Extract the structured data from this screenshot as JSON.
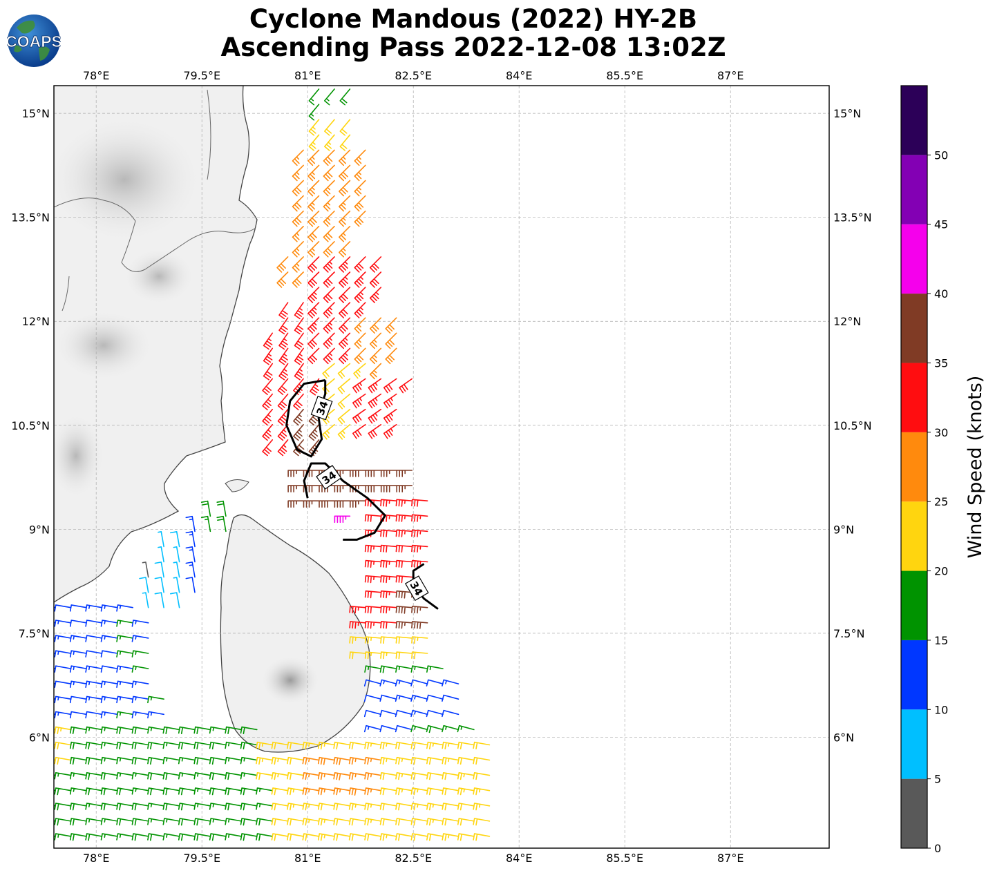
{
  "title": {
    "line1": "Cyclone Mandous (2022) HY-2B",
    "line2": "Ascending Pass 2022-12-08 13:02Z"
  },
  "logo": {
    "text": "COAPS",
    "icon": "globe-icon"
  },
  "map": {
    "lon_range": [
      77.4,
      88.4
    ],
    "lat_range": [
      4.4,
      15.4
    ],
    "lon_ticks": [
      {
        "value": 78,
        "label": "78°E"
      },
      {
        "value": 79.5,
        "label": "79.5°E"
      },
      {
        "value": 81,
        "label": "81°E"
      },
      {
        "value": 82.5,
        "label": "82.5°E"
      },
      {
        "value": 84,
        "label": "84°E"
      },
      {
        "value": 85.5,
        "label": "85.5°E"
      },
      {
        "value": 87,
        "label": "87°E"
      }
    ],
    "lat_ticks": [
      {
        "value": 15,
        "label": "15°N"
      },
      {
        "value": 13.5,
        "label": "13.5°N"
      },
      {
        "value": 12,
        "label": "12°N"
      },
      {
        "value": 10.5,
        "label": "10.5°N"
      },
      {
        "value": 9,
        "label": "9°N"
      },
      {
        "value": 7.5,
        "label": "7.5°N"
      },
      {
        "value": 6,
        "label": "6°N"
      }
    ],
    "contour_label": "34",
    "contour_labels": [
      {
        "lon": 81.2,
        "lat": 10.75,
        "rot": -70
      },
      {
        "lon": 81.3,
        "lat": 9.75,
        "rot": -35
      },
      {
        "lon": 82.55,
        "lat": 8.15,
        "rot": 60
      }
    ],
    "contours": [
      [
        [
          81.25,
          11.15
        ],
        [
          80.95,
          11.1
        ],
        [
          80.75,
          10.85
        ],
        [
          80.7,
          10.5
        ],
        [
          80.85,
          10.15
        ],
        [
          81.05,
          10.05
        ],
        [
          81.2,
          10.3
        ],
        [
          81.15,
          10.65
        ],
        [
          81.25,
          10.95
        ],
        [
          81.25,
          11.15
        ]
      ],
      [
        [
          81.0,
          9.45
        ],
        [
          80.95,
          9.7
        ],
        [
          81.05,
          9.95
        ],
        [
          81.25,
          9.95
        ],
        [
          81.5,
          9.7
        ],
        [
          81.85,
          9.45
        ],
        [
          82.1,
          9.2
        ],
        [
          81.95,
          8.95
        ],
        [
          81.7,
          8.85
        ],
        [
          81.5,
          8.85
        ]
      ],
      [
        [
          82.65,
          8.5
        ],
        [
          82.5,
          8.4
        ],
        [
          82.5,
          8.2
        ],
        [
          82.65,
          8.0
        ],
        [
          82.85,
          7.85
        ]
      ]
    ]
  },
  "wind_swath": {
    "speed_units": "knots",
    "north_segment": [
      [
        81.1,
        15.4
      ],
      [
        81.65,
        15.4
      ],
      [
        82.5,
        11.2
      ],
      [
        82.7,
        10.0
      ],
      [
        81.9,
        10.0
      ],
      [
        80.3,
        10.0
      ],
      [
        80.5,
        12.0
      ]
    ],
    "south_segment": [
      [
        80.8,
        10.1
      ],
      [
        82.6,
        10.1
      ],
      [
        83.2,
        8.0
      ],
      [
        83.8,
        5.0
      ],
      [
        83.9,
        4.4
      ],
      [
        77.4,
        4.4
      ],
      [
        77.4,
        8.0
      ],
      [
        78.6,
        8.0
      ],
      [
        79.0,
        9.0
      ],
      [
        79.6,
        9.3
      ],
      [
        80.3,
        9.4
      ],
      [
        80.6,
        9.2
      ]
    ],
    "regions": [
      {
        "poly": [
          [
            81.1,
            15.4
          ],
          [
            81.7,
            15.4
          ],
          [
            81.1,
            15.0
          ],
          [
            80.6,
            15.0
          ]
        ],
        "speed": 17,
        "dir": 40
      },
      {
        "poly": [
          [
            80.8,
            14.9
          ],
          [
            81.8,
            15.0
          ],
          [
            81.5,
            14.3
          ],
          [
            80.9,
            14.3
          ]
        ],
        "speed": 23,
        "dir": 40
      },
      {
        "poly": [
          [
            80.8,
            14.6
          ],
          [
            82.0,
            14.6
          ],
          [
            81.6,
            12.3
          ],
          [
            80.7,
            12.6
          ]
        ],
        "speed": 27,
        "dir": 45
      },
      {
        "poly": [
          [
            80.3,
            12.4
          ],
          [
            81.0,
            12.4
          ],
          [
            81.2,
            11.0
          ],
          [
            80.4,
            11.0
          ]
        ],
        "speed": 33,
        "dir": 35
      },
      {
        "poly": [
          [
            81.0,
            13.0
          ],
          [
            82.2,
            13.0
          ],
          [
            81.8,
            11.4
          ],
          [
            81.0,
            11.4
          ]
        ],
        "speed": 33,
        "dir": 45
      },
      {
        "poly": [
          [
            81.8,
            12.2
          ],
          [
            82.5,
            12.2
          ],
          [
            82.2,
            11.2
          ],
          [
            81.7,
            11.2
          ]
        ],
        "speed": 28,
        "dir": 45
      },
      {
        "poly": [
          [
            81.3,
            11.4
          ],
          [
            82.0,
            11.4
          ],
          [
            81.9,
            10.3
          ],
          [
            81.2,
            10.3
          ]
        ],
        "speed": 22,
        "dir": 50
      },
      {
        "poly": [
          [
            81.8,
            11.3
          ],
          [
            82.5,
            11.3
          ],
          [
            82.4,
            10.3
          ],
          [
            81.8,
            10.3
          ]
        ],
        "speed": 33,
        "dir": 55
      },
      {
        "poly": [
          [
            80.3,
            11.3
          ],
          [
            81.1,
            11.2
          ],
          [
            81.2,
            10.1
          ],
          [
            80.3,
            10.1
          ]
        ],
        "speed": 33,
        "dir": 40
      },
      {
        "poly": [
          [
            80.8,
            10.8
          ],
          [
            81.2,
            10.8
          ],
          [
            81.2,
            10.2
          ],
          [
            80.8,
            10.2
          ]
        ],
        "speed": 37,
        "dir": 40
      },
      {
        "poly": [
          [
            80.9,
            9.9
          ],
          [
            82.6,
            9.9
          ],
          [
            82.3,
            9.2
          ],
          [
            80.9,
            9.2
          ]
        ],
        "speed": 37,
        "dir": 90
      },
      {
        "poly": [
          [
            81.4,
            9.25
          ],
          [
            81.8,
            9.25
          ],
          [
            81.8,
            9.05
          ],
          [
            81.4,
            9.05
          ]
        ],
        "speed": 42,
        "dir": 90
      },
      {
        "poly": [
          [
            81.9,
            9.5
          ],
          [
            82.8,
            9.5
          ],
          [
            82.6,
            7.5
          ],
          [
            81.8,
            7.5
          ]
        ],
        "speed": 33,
        "dir": 95
      },
      {
        "poly": [
          [
            82.3,
            8.2
          ],
          [
            82.9,
            8.2
          ],
          [
            82.8,
            7.6
          ],
          [
            82.3,
            7.6
          ]
        ],
        "speed": 37,
        "dir": 95
      },
      {
        "poly": [
          [
            81.6,
            7.6
          ],
          [
            82.9,
            7.6
          ],
          [
            82.9,
            7.0
          ],
          [
            81.6,
            7.0
          ]
        ],
        "speed": 22,
        "dir": 95
      },
      {
        "poly": [
          [
            81.9,
            7.0
          ],
          [
            83.0,
            7.0
          ],
          [
            83.0,
            6.8
          ],
          [
            81.9,
            6.8
          ]
        ],
        "speed": 17,
        "dir": 100
      },
      {
        "poly": [
          [
            82.0,
            6.8
          ],
          [
            83.3,
            6.8
          ],
          [
            83.3,
            6.1
          ],
          [
            82.0,
            6.1
          ]
        ],
        "speed": 12,
        "dir": 105
      },
      {
        "poly": [
          [
            82.6,
            6.2
          ],
          [
            83.4,
            6.2
          ],
          [
            83.4,
            5.9
          ],
          [
            82.6,
            5.9
          ]
        ],
        "speed": 17,
        "dir": 105
      },
      {
        "poly": [
          [
            80.3,
            6.1
          ],
          [
            83.6,
            6.1
          ],
          [
            83.8,
            4.4
          ],
          [
            80.5,
            4.4
          ]
        ],
        "speed": 22,
        "dir": 100
      },
      {
        "poly": [
          [
            81.0,
            5.8
          ],
          [
            82.2,
            5.8
          ],
          [
            82.2,
            5.2
          ],
          [
            81.0,
            5.2
          ]
        ],
        "speed": 27,
        "dir": 100
      },
      {
        "poly": [
          [
            77.4,
            8.0
          ],
          [
            78.9,
            8.0
          ],
          [
            79.0,
            5.7
          ],
          [
            77.4,
            5.7
          ]
        ],
        "speed": 15,
        "dir": 100
      },
      {
        "poly": [
          [
            77.4,
            8.0
          ],
          [
            78.5,
            8.0
          ],
          [
            78.5,
            6.2
          ],
          [
            77.4,
            6.2
          ]
        ],
        "speed": 13,
        "dir": 100
      },
      {
        "poly": [
          [
            77.4,
            6.3
          ],
          [
            80.4,
            6.3
          ],
          [
            80.6,
            4.4
          ],
          [
            77.4,
            4.4
          ]
        ],
        "speed": 18,
        "dir": 100
      },
      {
        "poly": [
          [
            77.4,
            6.2
          ],
          [
            77.7,
            6.2
          ],
          [
            77.7,
            5.6
          ],
          [
            77.4,
            5.6
          ]
        ],
        "speed": 22,
        "dir": 100
      },
      {
        "poly": [
          [
            78.6,
            8.9
          ],
          [
            79.3,
            8.9
          ],
          [
            79.3,
            7.8
          ],
          [
            78.6,
            7.8
          ]
        ],
        "speed": 8,
        "dir": 170
      },
      {
        "poly": [
          [
            78.4,
            8.5
          ],
          [
            78.9,
            8.5
          ],
          [
            78.9,
            8.1
          ],
          [
            78.4,
            8.1
          ]
        ],
        "speed": 3,
        "dir": 170
      },
      {
        "poly": [
          [
            79.3,
            9.1
          ],
          [
            79.6,
            9.1
          ],
          [
            79.5,
            7.9
          ],
          [
            79.2,
            7.9
          ]
        ],
        "speed": 13,
        "dir": 170
      },
      {
        "poly": [
          [
            79.5,
            9.8
          ],
          [
            80.0,
            9.8
          ],
          [
            80.0,
            8.8
          ],
          [
            79.5,
            8.8
          ]
        ],
        "speed": 18,
        "dir": 170
      }
    ]
  },
  "colorbar": {
    "title": "Wind Speed (knots)",
    "min": 0,
    "max": 55,
    "bins": [
      {
        "from": 0,
        "to": 5,
        "color": "#595959"
      },
      {
        "from": 5,
        "to": 10,
        "color": "#00bfff"
      },
      {
        "from": 10,
        "to": 15,
        "color": "#0037ff"
      },
      {
        "from": 15,
        "to": 20,
        "color": "#009300"
      },
      {
        "from": 20,
        "to": 25,
        "color": "#ffd50f"
      },
      {
        "from": 25,
        "to": 30,
        "color": "#ff8a0d"
      },
      {
        "from": 30,
        "to": 35,
        "color": "#ff0d10"
      },
      {
        "from": 35,
        "to": 40,
        "color": "#803b25"
      },
      {
        "from": 40,
        "to": 45,
        "color": "#f500ec"
      },
      {
        "from": 45,
        "to": 50,
        "color": "#8300b4"
      },
      {
        "from": 50,
        "to": 55,
        "color": "#2c0058"
      }
    ],
    "ticks": [
      "0",
      "5",
      "10",
      "15",
      "20",
      "25",
      "30",
      "35",
      "40",
      "45",
      "50"
    ]
  }
}
